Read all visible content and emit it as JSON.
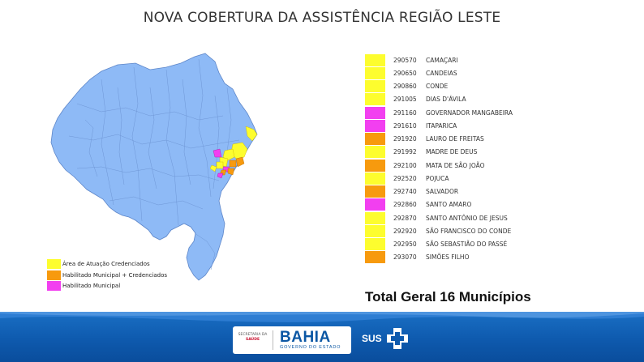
{
  "title": "NOVA COBERTURA DA ASSISTÊNCIA REGIÃO LESTE",
  "colors": {
    "yellow": "#fdfd2e",
    "orange": "#f79a0e",
    "magenta": "#f23ff0",
    "map_fill": "#8ebaf6",
    "map_stroke": "#5d86c9",
    "footer_blue": "#0e5aae"
  },
  "map": {
    "legend": [
      {
        "label": "Área de Atuação Credenciados",
        "color": "#fdfd2e"
      },
      {
        "label": "Habilitado Municipal + Credenciados",
        "color": "#f79a0e"
      },
      {
        "label": "Habilitado Municipal",
        "color": "#f23ff0"
      }
    ]
  },
  "municipios": [
    {
      "code": "290570",
      "name": "CAMAÇARI",
      "color": "#fdfd2e"
    },
    {
      "code": "290650",
      "name": "CANDEIAS",
      "color": "#fdfd2e"
    },
    {
      "code": "290860",
      "name": "CONDE",
      "color": "#fdfd2e"
    },
    {
      "code": "291005",
      "name": "DIAS D'ÁVILA",
      "color": "#fdfd2e"
    },
    {
      "code": "291160",
      "name": "GOVERNADOR MANGABEIRA",
      "color": "#f23ff0"
    },
    {
      "code": "291610",
      "name": "ITAPARICA",
      "color": "#f23ff0"
    },
    {
      "code": "291920",
      "name": "LAURO DE FREITAS",
      "color": "#f79a0e"
    },
    {
      "code": "291992",
      "name": "MADRE DE DEUS",
      "color": "#fdfd2e"
    },
    {
      "code": "292100",
      "name": "MATA DE SÃO JOÃO",
      "color": "#f79a0e"
    },
    {
      "code": "292520",
      "name": "POJUCA",
      "color": "#fdfd2e"
    },
    {
      "code": "292740",
      "name": "SALVADOR",
      "color": "#f79a0e"
    },
    {
      "code": "292860",
      "name": "SANTO AMARO",
      "color": "#f23ff0"
    },
    {
      "code": "292870",
      "name": "SANTO ANTÔNIO DE JESUS",
      "color": "#fdfd2e"
    },
    {
      "code": "292920",
      "name": "SÃO FRANCISCO DO CONDE",
      "color": "#fdfd2e"
    },
    {
      "code": "292950",
      "name": "SÃO SEBASTIÃO DO PASSÉ",
      "color": "#fdfd2e"
    },
    {
      "code": "293070",
      "name": "SIMÕES FILHO",
      "color": "#f79a0e"
    }
  ],
  "total": "Total Geral 16 Municípios",
  "footer": {
    "secretaria_line1": "SECRETARIA DA",
    "secretaria_line2": "SAÚDE",
    "bahia": "BAHIA",
    "governo": "GOVERNO DO ESTADO",
    "sus": "SUS"
  }
}
